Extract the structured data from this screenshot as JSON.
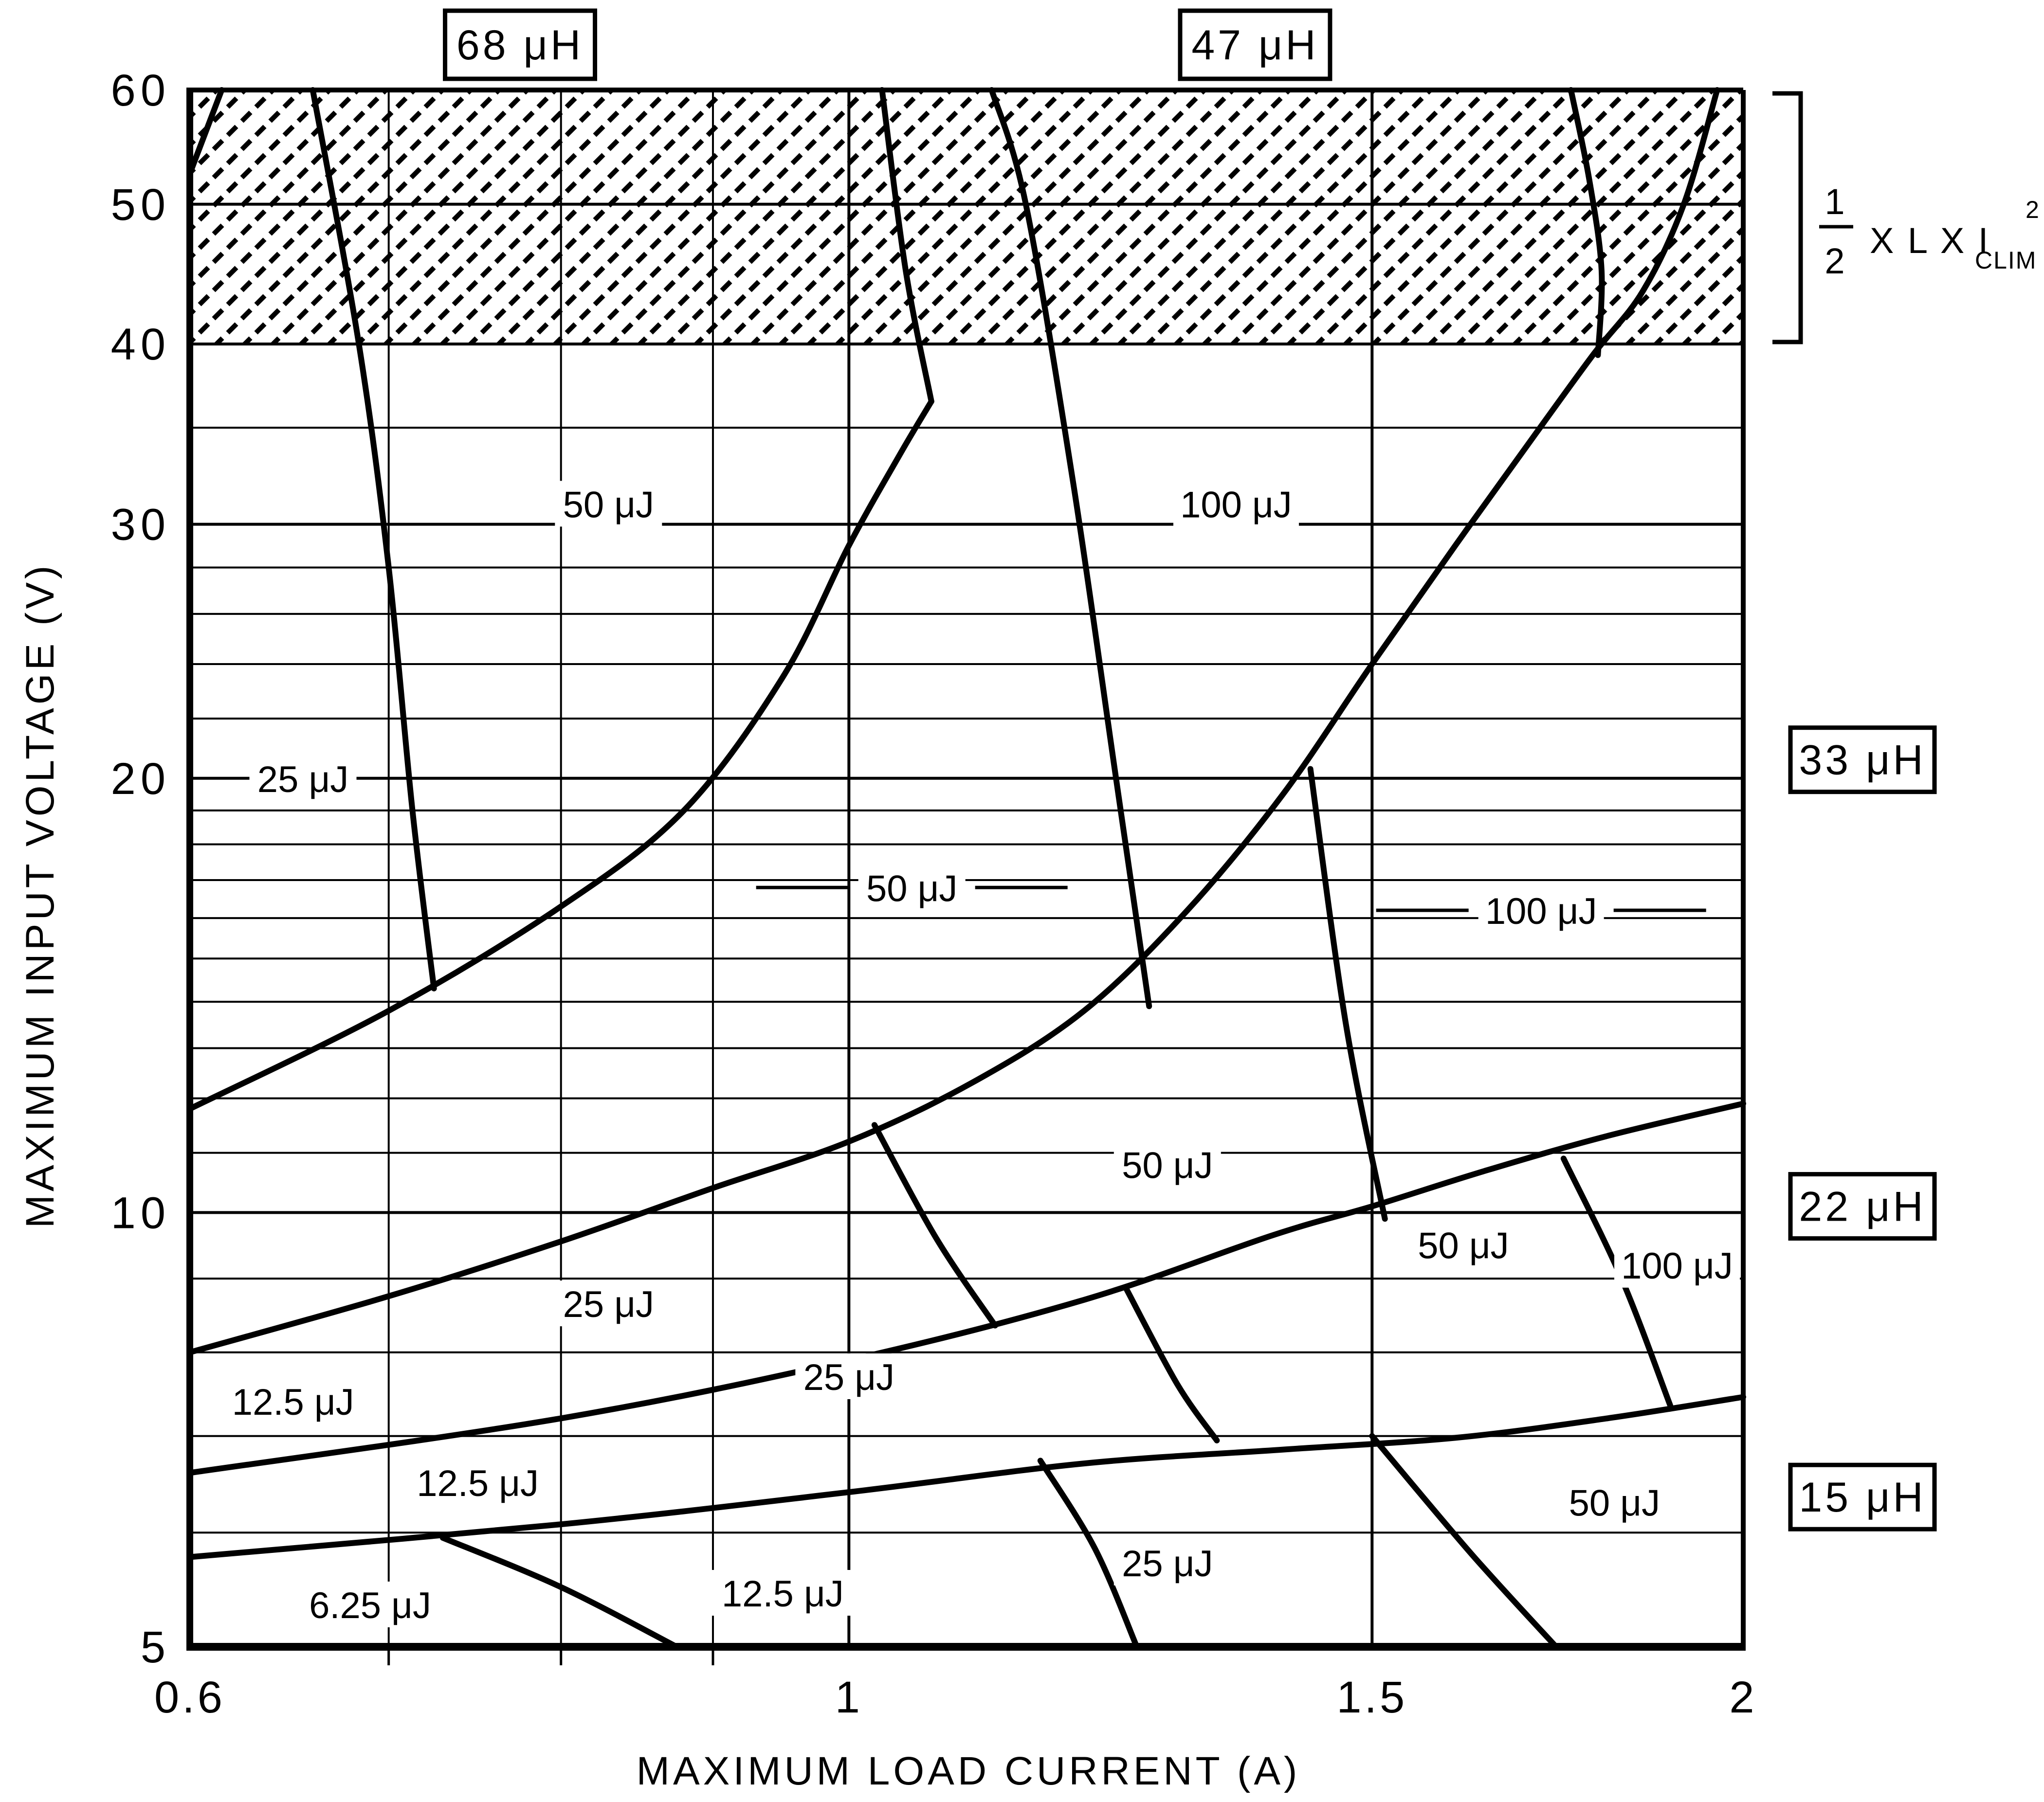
{
  "chart_data": {
    "type": "line",
    "title": "",
    "xlabel": "MAXIMUM LOAD CURRENT (A)",
    "ylabel": "MAXIMUM INPUT VOLTAGE (V)",
    "x_scale": "log",
    "y_scale": "log",
    "xlim": [
      0.6,
      2
    ],
    "ylim": [
      5,
      60
    ],
    "x_ticks_major": [
      {
        "v": 0.6,
        "label": "0.6"
      },
      {
        "v": 1,
        "label": "1"
      },
      {
        "v": 1.5,
        "label": "1.5"
      },
      {
        "v": 2,
        "label": "2"
      }
    ],
    "x_ticks_minor": [
      0.7,
      0.8,
      0.9
    ],
    "y_ticks_major": [
      {
        "v": 5,
        "label": "5"
      },
      {
        "v": 10,
        "label": "10"
      },
      {
        "v": 20,
        "label": "20"
      },
      {
        "v": 30,
        "label": "30"
      },
      {
        "v": 40,
        "label": "40"
      },
      {
        "v": 50,
        "label": "50"
      },
      {
        "v": 60,
        "label": "60"
      }
    ],
    "y_ticks_minor": [
      6,
      7,
      8,
      9,
      11,
      12,
      13,
      14,
      15,
      16,
      17,
      18,
      19,
      22,
      24,
      26,
      28,
      35
    ],
    "grid": "on",
    "hatched_region": {
      "v_min": 40,
      "v_max": 60,
      "meaning": "energy given by formula"
    },
    "energy_formula": {
      "numerator": "1",
      "denominator": "2",
      "body": "X L X I",
      "subscript": "CLIM",
      "superscript": "2"
    },
    "inductor_labels": [
      {
        "text": "68 μH",
        "side": "top",
        "I": 0.775
      },
      {
        "text": "47 μH",
        "side": "top",
        "I": 1.37
      },
      {
        "text": "33 μH",
        "side": "right",
        "V": 20.6
      },
      {
        "text": "22 μH",
        "side": "right",
        "V": 10.1
      },
      {
        "text": "15 μH",
        "side": "right",
        "V": 6.35
      }
    ],
    "region_boundary_curves": [
      {
        "name": "boundary-68uH-47uH",
        "points": [
          [
            0.6,
            11.8
          ],
          [
            0.7,
            13.8
          ],
          [
            0.8,
            16.3
          ],
          [
            0.88,
            19.0
          ],
          [
            0.95,
            23.5
          ],
          [
            1.0,
            29.0
          ],
          [
            1.04,
            33.5
          ],
          [
            1.066,
            36.5
          ]
        ]
      },
      {
        "name": "boundary-68uH-47uH-upper",
        "points": [
          [
            1.066,
            36.5
          ],
          [
            1.045,
            45.0
          ],
          [
            1.026,
            60.0
          ]
        ]
      },
      {
        "name": "boundary-47uH-33uH",
        "points": [
          [
            0.6,
            8.0
          ],
          [
            0.7,
            8.75
          ],
          [
            0.8,
            9.55
          ],
          [
            0.9,
            10.4
          ],
          [
            1.0,
            11.2
          ],
          [
            1.1,
            12.3
          ],
          [
            1.2,
            13.8
          ],
          [
            1.3,
            16.2
          ],
          [
            1.4,
            19.5
          ],
          [
            1.5,
            24.0
          ],
          [
            1.6,
            29.0
          ],
          [
            1.7,
            34.5
          ],
          [
            1.78,
            39.3
          ],
          [
            1.85,
            43.5
          ],
          [
            1.91,
            50.0
          ],
          [
            1.96,
            60.0
          ]
        ]
      },
      {
        "name": "boundary-33uH-22uH",
        "points": [
          [
            0.6,
            6.6
          ],
          [
            0.8,
            7.2
          ],
          [
            1.0,
            7.9
          ],
          [
            1.2,
            8.7
          ],
          [
            1.39,
            9.65
          ],
          [
            1.5,
            10.1
          ],
          [
            1.64,
            10.7
          ],
          [
            1.8,
            11.3
          ],
          [
            2.0,
            11.9
          ]
        ]
      },
      {
        "name": "boundary-22uH-15uH",
        "points": [
          [
            0.6,
            5.77
          ],
          [
            0.8,
            6.08
          ],
          [
            1.0,
            6.4
          ],
          [
            1.2,
            6.7
          ],
          [
            1.4,
            6.85
          ],
          [
            1.6,
            6.98
          ],
          [
            1.8,
            7.2
          ],
          [
            2.0,
            7.45
          ]
        ]
      }
    ],
    "energy_separator_curves": [
      {
        "name": "sep-68uH-corner-25uJ",
        "points": [
          [
            0.615,
            60
          ],
          [
            0.6,
            52.5
          ]
        ]
      },
      {
        "name": "sep-68uH-25-50uJ",
        "points": [
          [
            0.66,
            60
          ],
          [
            0.684,
            40
          ],
          [
            0.7,
            28
          ],
          [
            0.713,
            19
          ],
          [
            0.725,
            14.3
          ]
        ]
      },
      {
        "name": "sep-47uH-50-100uJ",
        "points": [
          [
            1.117,
            60
          ],
          [
            1.147,
            50
          ],
          [
            1.19,
            32
          ],
          [
            1.23,
            20
          ],
          [
            1.262,
            13.9
          ]
        ]
      },
      {
        "name": "sep-47uH-100uJ-right",
        "points": [
          [
            1.75,
            60
          ],
          [
            1.775,
            52
          ],
          [
            1.792,
            45
          ],
          [
            1.787,
            39.3
          ]
        ]
      },
      {
        "name": "sep-33uH-25-50uJ",
        "points": [
          [
            1.02,
            11.5
          ],
          [
            1.07,
            9.6
          ],
          [
            1.12,
            8.35
          ]
        ]
      },
      {
        "name": "sep-33uH-50-100uJ",
        "points": [
          [
            1.43,
            20.3
          ],
          [
            1.47,
            13.5
          ],
          [
            1.515,
            9.9
          ]
        ]
      },
      {
        "name": "sep-22uH-25-50uJ",
        "points": [
          [
            1.24,
            8.85
          ],
          [
            1.29,
            7.6
          ],
          [
            1.33,
            6.95
          ]
        ]
      },
      {
        "name": "sep-22uH-50-100uJ",
        "points": [
          [
            1.74,
            10.9
          ],
          [
            1.82,
            9.0
          ],
          [
            1.89,
            7.35
          ]
        ]
      },
      {
        "name": "sep-15uH-6.25-12.5uJ",
        "points": [
          [
            0.73,
            5.95
          ],
          [
            0.8,
            5.5
          ],
          [
            0.875,
            5.0
          ]
        ]
      },
      {
        "name": "sep-15uH-12.5-25uJ",
        "points": [
          [
            1.16,
            6.73
          ],
          [
            1.21,
            5.85
          ],
          [
            1.25,
            5.0
          ]
        ]
      },
      {
        "name": "sep-15uH-25-50uJ",
        "points": [
          [
            1.5,
            7.0
          ],
          [
            1.62,
            5.8
          ],
          [
            1.73,
            5.0
          ]
        ]
      }
    ],
    "energy_labels": [
      {
        "text": "25 μJ",
        "I": 0.655,
        "V": 20.0,
        "leader": false
      },
      {
        "text": "50 μJ",
        "I": 0.83,
        "V": 31.0,
        "leader": false
      },
      {
        "text": "100 μJ",
        "I": 1.35,
        "V": 31.0,
        "leader": false
      },
      {
        "text": "50 μJ",
        "I": 1.05,
        "V": 16.8,
        "leader": true
      },
      {
        "text": "100 μJ",
        "I": 1.71,
        "V": 16.2,
        "leader": true
      },
      {
        "text": "25 μJ",
        "I": 0.83,
        "V": 8.65,
        "leader": false
      },
      {
        "text": "12.5 μJ",
        "I": 0.65,
        "V": 7.4,
        "leader": false
      },
      {
        "text": "50 μJ",
        "I": 1.28,
        "V": 10.8,
        "leader": false
      },
      {
        "text": "12.5 μJ",
        "I": 0.75,
        "V": 6.5,
        "leader": false
      },
      {
        "text": "25 μJ",
        "I": 1.0,
        "V": 7.7,
        "leader": false
      },
      {
        "text": "50 μJ",
        "I": 1.61,
        "V": 9.5,
        "leader": false
      },
      {
        "text": "100 μJ",
        "I": 1.9,
        "V": 9.2,
        "leader": false
      },
      {
        "text": "6.25 μJ",
        "I": 0.69,
        "V": 5.35,
        "leader": false
      },
      {
        "text": "12.5 μJ",
        "I": 0.95,
        "V": 5.45,
        "leader": false
      },
      {
        "text": "25 μJ",
        "I": 1.28,
        "V": 5.72,
        "leader": false
      },
      {
        "text": "50 μJ",
        "I": 1.81,
        "V": 6.3,
        "leader": false
      }
    ]
  }
}
